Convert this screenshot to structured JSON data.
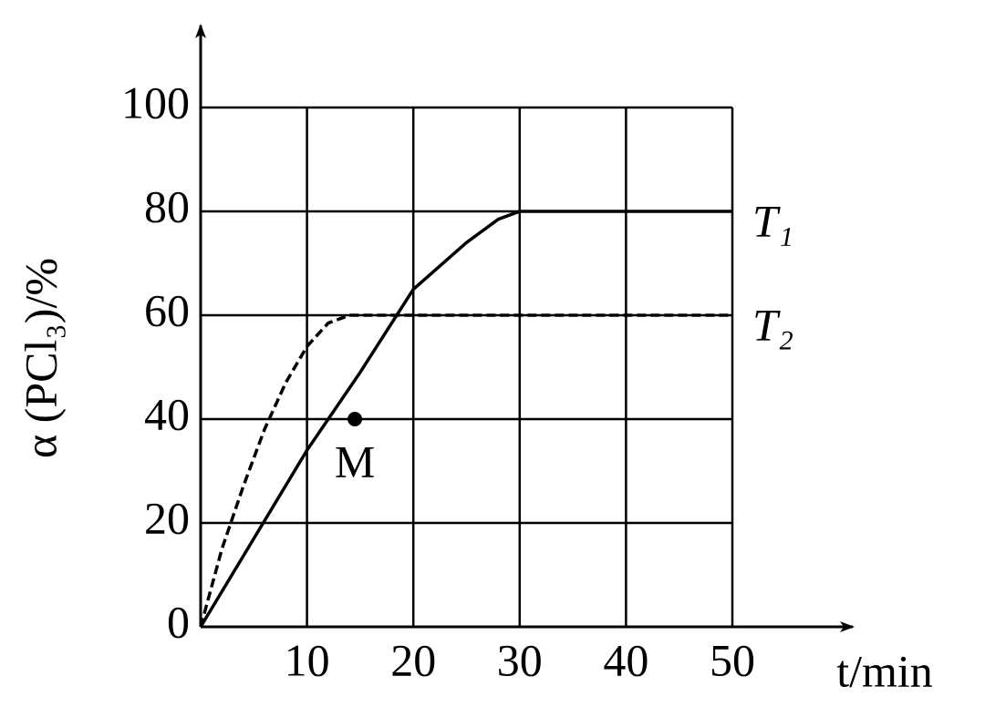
{
  "chart_data": {
    "type": "line",
    "x_label": "t/min",
    "y_label": "α (PCl₃)/%",
    "xlim": [
      0,
      50
    ],
    "xticks": [
      10,
      20,
      30,
      40,
      50
    ],
    "ylim": [
      0,
      100
    ],
    "yticks": [
      0,
      20,
      40,
      60,
      80,
      100
    ],
    "grid": true,
    "series": [
      {
        "name": "T₁",
        "color": "#000000",
        "dash": false,
        "x": [
          0,
          5,
          10,
          15,
          20,
          25,
          28,
          30,
          40,
          50
        ],
        "values": [
          0,
          17,
          34,
          49,
          65,
          74,
          78.5,
          80,
          80,
          80
        ]
      },
      {
        "name": "T₂",
        "color": "#000000",
        "dash": true,
        "x": [
          0,
          2,
          4,
          6,
          8,
          10,
          12,
          14,
          20,
          50
        ],
        "values": [
          0,
          15,
          27,
          38,
          47,
          54,
          58.5,
          60,
          60,
          60
        ]
      }
    ],
    "points": [
      {
        "label": "M",
        "x": 14.5,
        "y": 40
      }
    ]
  }
}
